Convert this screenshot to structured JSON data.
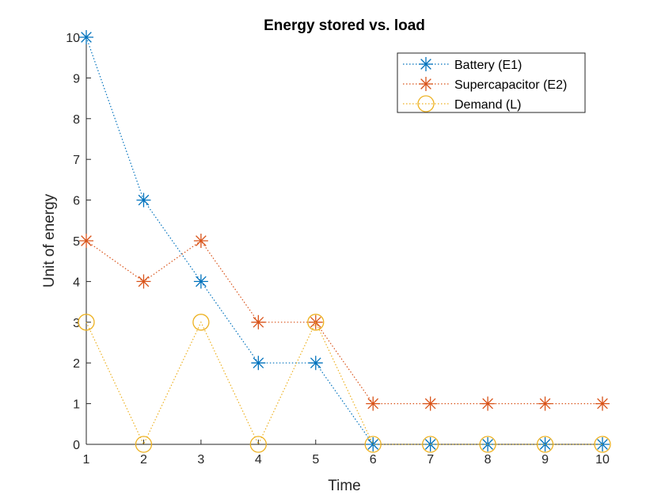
{
  "chart_data": {
    "type": "line",
    "title": "Energy stored vs. load",
    "xlabel": "Time",
    "ylabel": "Unit of energy",
    "xlim": [
      1,
      10
    ],
    "ylim": [
      0,
      10
    ],
    "x": [
      1,
      2,
      3,
      4,
      5,
      6,
      7,
      8,
      9,
      10
    ],
    "xticks": [
      "1",
      "2",
      "3",
      "4",
      "5",
      "6",
      "7",
      "8",
      "9",
      "10"
    ],
    "yticks": [
      "0",
      "1",
      "2",
      "3",
      "4",
      "5",
      "6",
      "7",
      "8",
      "9",
      "10"
    ],
    "grid": false,
    "legend_position": "top-right",
    "series": [
      {
        "name": "Battery (E1)",
        "values": [
          10,
          6,
          4,
          2,
          2,
          0,
          0,
          0,
          0,
          0
        ],
        "color": "#0072BD",
        "marker": "asterisk",
        "line": "dotted"
      },
      {
        "name": "Supercapacitor (E2)",
        "values": [
          5,
          4,
          5,
          3,
          3,
          1,
          1,
          1,
          1,
          1
        ],
        "color": "#D95319",
        "marker": "asterisk",
        "line": "dotted"
      },
      {
        "name": "Demand (L)",
        "values": [
          3,
          0,
          3,
          0,
          3,
          0,
          0,
          0,
          0,
          0
        ],
        "color": "#EDB120",
        "marker": "circle",
        "line": "dotted"
      }
    ]
  }
}
